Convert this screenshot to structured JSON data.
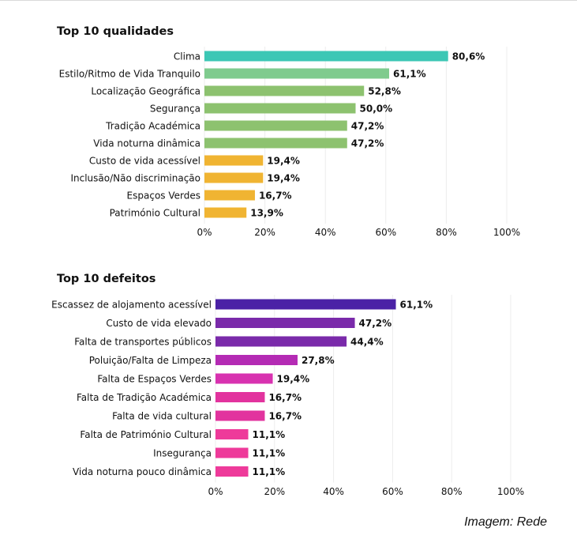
{
  "chart_data": [
    {
      "type": "bar",
      "orientation": "horizontal",
      "title": "Top 10 qualidades",
      "categories": [
        "Clima",
        "Estilo/Ritmo de Vida Tranquilo",
        "Localização Geográfica",
        "Segurança",
        "Tradição Académica",
        "Vida noturna dinâmica",
        "Custo de vida acessível",
        "Inclusão/Não discriminação",
        "Espaços Verdes",
        "Património Cultural"
      ],
      "values": [
        80.6,
        61.1,
        52.8,
        50.0,
        47.2,
        47.2,
        19.4,
        19.4,
        16.7,
        13.9
      ],
      "value_labels": [
        "80,6%",
        "61,1%",
        "52,8%",
        "50,0%",
        "47,2%",
        "47,2%",
        "19,4%",
        "19,4%",
        "16,7%",
        "13,9%"
      ],
      "colors": [
        "#3cc7b5",
        "#7fcb8e",
        "#8dc26f",
        "#8dc26f",
        "#8dc26f",
        "#8dc26f",
        "#f0b432",
        "#f0b432",
        "#f0b432",
        "#f0b432"
      ],
      "xlim": [
        0,
        100
      ],
      "xticks": [
        "0%",
        "20%",
        "40%",
        "60%",
        "80%",
        "100%"
      ],
      "grid": "vertical"
    },
    {
      "type": "bar",
      "orientation": "horizontal",
      "title": "Top 10 defeitos",
      "categories": [
        "Escassez de alojamento acessível",
        "Custo de vida elevado",
        "Falta de transportes públicos",
        "Poluição/Falta de Limpeza",
        "Falta de Espaços Verdes",
        "Falta de Tradição Académica",
        "Falta de vida cultural",
        "Falta de Património Cultural",
        "Insegurança",
        "Vida noturna pouco dinâmica"
      ],
      "values": [
        61.1,
        47.2,
        44.4,
        27.8,
        19.4,
        16.7,
        16.7,
        11.1,
        11.1,
        11.1
      ],
      "value_labels": [
        "61,1%",
        "47,2%",
        "44,4%",
        "27,8%",
        "19,4%",
        "16,7%",
        "16,7%",
        "11,1%",
        "11,1%",
        "11,1%"
      ],
      "colors": [
        "#4b22a6",
        "#7a2aaa",
        "#7a2aaa",
        "#b42bb4",
        "#d832b0",
        "#e2339e",
        "#e2339e",
        "#ee3a9a",
        "#ee3a9a",
        "#ee3a9a"
      ],
      "xlim": [
        0,
        100
      ],
      "xticks": [
        "0%",
        "20%",
        "40%",
        "60%",
        "80%",
        "100%"
      ],
      "grid": "vertical"
    }
  ],
  "caption": "Imagem: Rede"
}
